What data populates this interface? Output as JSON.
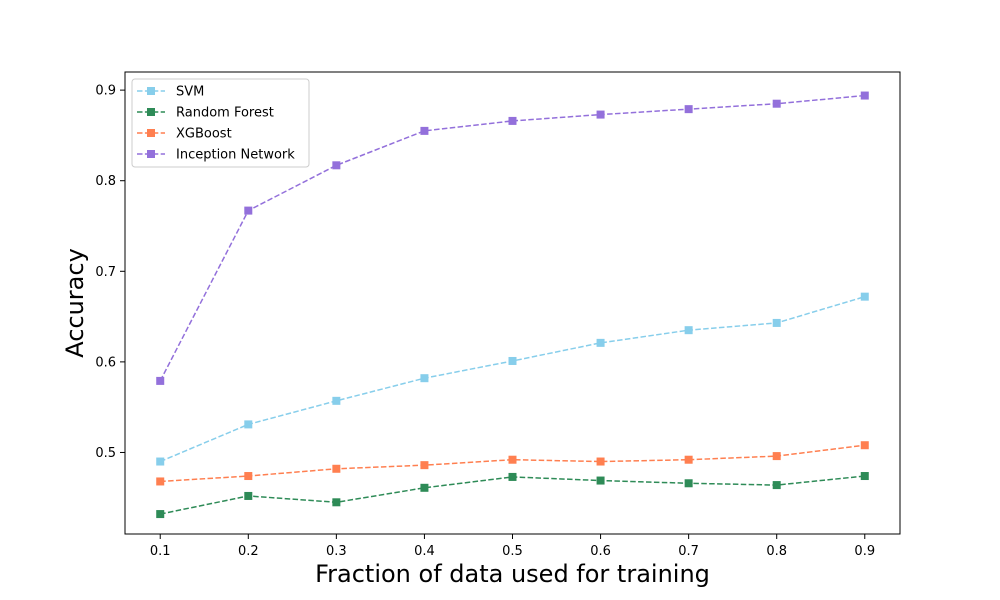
{
  "chart_data": {
    "type": "line",
    "title": "",
    "xlabel": "Fraction of data used for training",
    "ylabel": "Accuracy",
    "x": [
      0.1,
      0.2,
      0.3,
      0.4,
      0.5,
      0.6,
      0.7,
      0.8,
      0.9
    ],
    "x_tick_labels": [
      "0.1",
      "0.2",
      "0.3",
      "0.4",
      "0.5",
      "0.6",
      "0.7",
      "0.8",
      "0.9"
    ],
    "y_ticks": [
      0.5,
      0.6,
      0.7,
      0.8,
      0.9
    ],
    "y_tick_labels": [
      "0.5",
      "0.6",
      "0.7",
      "0.8",
      "0.9"
    ],
    "xlim": [
      0.06,
      0.94
    ],
    "ylim": [
      0.41,
      0.92
    ],
    "grid": false,
    "legend_position": "top-left",
    "line_style": "dashed",
    "marker": "square",
    "series": [
      {
        "name": "SVM",
        "color": "#87CEEB",
        "values": [
          0.49,
          0.531,
          0.557,
          0.582,
          0.601,
          0.621,
          0.635,
          0.643,
          0.672
        ]
      },
      {
        "name": "Random Forest",
        "color": "#2E8B57",
        "values": [
          0.432,
          0.452,
          0.445,
          0.461,
          0.473,
          0.469,
          0.466,
          0.464,
          0.474
        ]
      },
      {
        "name": "XGBoost",
        "color": "#FF7F50",
        "values": [
          0.468,
          0.474,
          0.482,
          0.486,
          0.492,
          0.49,
          0.492,
          0.496,
          0.508
        ]
      },
      {
        "name": "Inception Network",
        "color": "#9370DB",
        "values": [
          0.579,
          0.767,
          0.817,
          0.855,
          0.866,
          0.873,
          0.879,
          0.885,
          0.894
        ]
      }
    ]
  }
}
